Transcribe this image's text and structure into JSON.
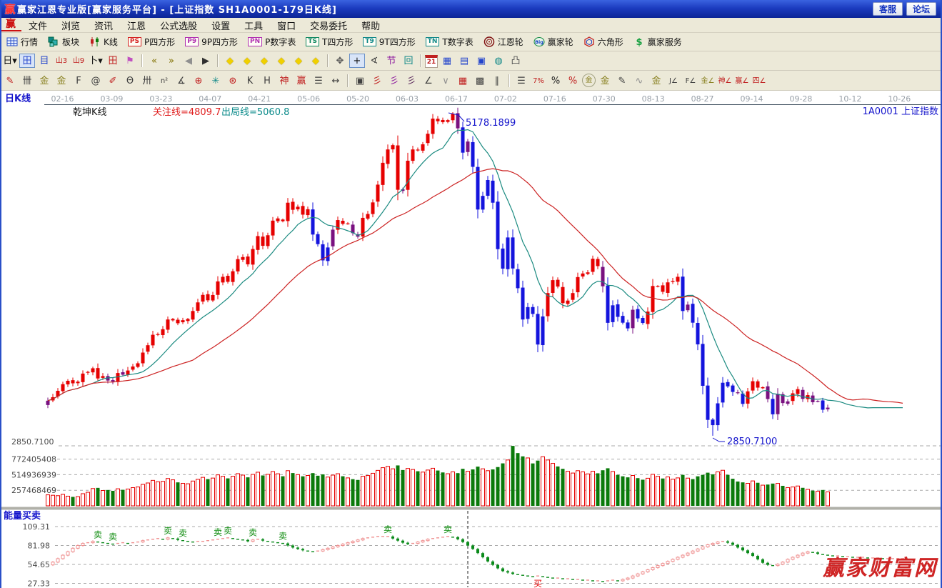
{
  "window": {
    "title": "赢家江恩专业版[赢家服务平台] - [上证指数  SH1A0001-179日K线]",
    "buttons": [
      "客服",
      "论坛"
    ]
  },
  "menu": {
    "items": [
      "文件",
      "浏览",
      "资讯",
      "江恩",
      "公式选股",
      "设置",
      "工具",
      "窗口",
      "交易委托",
      "帮助"
    ],
    "logo": "赢"
  },
  "toolbar1": [
    {
      "icon": "grid",
      "label": "行情",
      "name": "quotes"
    },
    {
      "icon": "blocks",
      "label": "板块",
      "name": "sectors"
    },
    {
      "icon": "kline",
      "label": "K线",
      "name": "kline"
    },
    {
      "icon": "badge",
      "badge": "PS",
      "color": "#d42020",
      "label": "P四方形",
      "name": "p-square"
    },
    {
      "icon": "badge",
      "badge": "P9",
      "color": "#b030b0",
      "label": "9P四方形",
      "name": "9p-square"
    },
    {
      "icon": "badge",
      "badge": "PN",
      "color": "#b030b0",
      "label": "P数字表",
      "name": "p-table"
    },
    {
      "icon": "badge",
      "badge": "TS",
      "color": "#108860",
      "label": "T四方形",
      "name": "t-square"
    },
    {
      "icon": "badge",
      "badge": "T9",
      "color": "#108888",
      "label": "9T四方形",
      "name": "9t-square"
    },
    {
      "icon": "badge",
      "badge": "TN",
      "color": "#108888",
      "label": "T数字表",
      "name": "t-table"
    },
    {
      "icon": "wheel",
      "label": "江恩轮",
      "name": "gann-wheel"
    },
    {
      "icon": "big",
      "label": "赢家轮",
      "name": "winner-wheel"
    },
    {
      "icon": "hex",
      "label": "六角形",
      "name": "hexagon"
    },
    {
      "icon": "dollar",
      "label": "赢家服务",
      "name": "winner-service"
    }
  ],
  "toolbar2": [
    {
      "g": "日▾",
      "c": "#101010",
      "n": "kline-style"
    },
    {
      "g": "田",
      "c": "#2244cc",
      "n": "window-grid",
      "a": true
    },
    {
      "g": "目",
      "c": "#2244cc",
      "n": "info-note"
    },
    {
      "g": "山3",
      "c": "#c02020",
      "n": "bars-3",
      "small": true
    },
    {
      "g": "山9",
      "c": "#c02020",
      "n": "bars-9",
      "small": true
    },
    {
      "g": "卜▾",
      "c": "#101010",
      "n": "candle-tool"
    },
    {
      "g": "田",
      "c": "#c02020",
      "n": "window-red"
    },
    {
      "g": "⚑",
      "c": "#c050c0",
      "n": "flag-chart"
    },
    {
      "sep": true
    },
    {
      "g": "«",
      "c": "#807000",
      "n": "first-page"
    },
    {
      "g": "»",
      "c": "#807000",
      "n": "last-page"
    },
    {
      "g": "◀",
      "c": "#909090",
      "n": "prev-bar"
    },
    {
      "g": "▶",
      "c": "#303030",
      "n": "next-bar"
    },
    {
      "sep": true
    },
    {
      "g": "◆",
      "n": "gann-nav-left",
      "diam": true
    },
    {
      "g": "◆",
      "n": "gann-nav-right",
      "diam": true
    },
    {
      "g": "◆",
      "n": "gann-nav-cross",
      "diam": true
    },
    {
      "g": "◆",
      "n": "gann-nav-plus",
      "diam": true
    },
    {
      "g": "◆",
      "n": "gann-nav-horizontal",
      "diam": true
    },
    {
      "g": "◆",
      "n": "gann-nav-vertical",
      "diam": true
    },
    {
      "sep": true
    },
    {
      "g": "✥",
      "c": "#555555",
      "n": "pan-hand"
    },
    {
      "g": "+",
      "c": "#101010",
      "n": "crosshair",
      "a": true
    },
    {
      "g": "∢",
      "c": "#444444",
      "n": "angle-measure"
    },
    {
      "g": "节",
      "c": "#9020a0",
      "n": "festival-tool"
    },
    {
      "g": "回",
      "c": "#108888",
      "n": "cycle-tool"
    },
    {
      "sep": true
    },
    {
      "g": "21",
      "c": "#c02020",
      "n": "calendar",
      "cal": true
    },
    {
      "g": "▦",
      "c": "#2244cc",
      "n": "calculator"
    },
    {
      "g": "▤",
      "c": "#2244cc",
      "n": "report"
    },
    {
      "g": "▣",
      "c": "#2244cc",
      "n": "save"
    },
    {
      "g": "◍",
      "c": "#108888",
      "n": "web-link"
    },
    {
      "g": "凸",
      "c": "#555555",
      "n": "print"
    }
  ],
  "toolbar3": [
    {
      "g": "✎",
      "c": "#c02020",
      "n": "draw-pen"
    },
    {
      "g": "卌",
      "c": "#404040",
      "n": "grid-divider"
    },
    {
      "g": "金",
      "c": "#888020",
      "n": "gold-divider-1"
    },
    {
      "g": "金",
      "c": "#888020",
      "n": "gold-divider-2"
    },
    {
      "g": "F",
      "c": "#404040",
      "n": "fib-divider"
    },
    {
      "g": "@",
      "c": "#404040",
      "n": "spiral"
    },
    {
      "g": "✐",
      "c": "#c02020",
      "n": "pen-2"
    },
    {
      "g": "Θ",
      "c": "#404040",
      "n": "time-spiral"
    },
    {
      "g": "卅",
      "c": "#404040",
      "n": "time-divider"
    },
    {
      "g": "n²",
      "c": "#404040",
      "n": "square-numbers",
      "small": true
    },
    {
      "g": "∡",
      "c": "#404040",
      "n": "angle-ruler"
    },
    {
      "g": "⊕",
      "c": "#c02020",
      "n": "target-circle"
    },
    {
      "g": "✳",
      "c": "#108888",
      "n": "star-web"
    },
    {
      "g": "⊛",
      "c": "#c02020",
      "n": "web-box"
    },
    {
      "g": "K",
      "c": "#404040",
      "n": "k-pattern"
    },
    {
      "g": "H",
      "c": "#404040",
      "n": "h-pattern"
    },
    {
      "g": "神",
      "c": "#c02020",
      "n": "shen-tool"
    },
    {
      "g": "赢",
      "c": "#c02020",
      "n": "ying-tool"
    },
    {
      "g": "☰",
      "c": "#404040",
      "n": "ruler-123"
    },
    {
      "g": "↔",
      "c": "#404040",
      "n": "measure-arrows"
    },
    {
      "sep": true
    },
    {
      "g": "▣",
      "c": "#404040",
      "n": "box-tool"
    },
    {
      "g": "彡",
      "c": "#c02020",
      "n": "fan-red"
    },
    {
      "g": "彡",
      "c": "#9020a0",
      "n": "fan-purple"
    },
    {
      "g": "彡",
      "c": "#603060",
      "n": "fan-dark"
    },
    {
      "g": "∠",
      "c": "#404040",
      "n": "angle-lines"
    },
    {
      "g": "∨",
      "c": "#909090",
      "n": "wave-v"
    },
    {
      "g": "▦",
      "c": "#c02020",
      "n": "grid-red"
    },
    {
      "g": "▩",
      "c": "#404040",
      "n": "grid-box"
    },
    {
      "g": "∥",
      "c": "#404040",
      "n": "parallel-lines"
    },
    {
      "sep": true
    },
    {
      "g": "☰",
      "c": "#404040",
      "n": "price-ruler"
    },
    {
      "g": "7%",
      "c": "#c02020",
      "n": "percent-7",
      "small": true
    },
    {
      "g": "%",
      "c": "#202020",
      "n": "percent"
    },
    {
      "g": "%",
      "c": "#c02020",
      "n": "percent-line"
    },
    {
      "g": "金",
      "c": "#888020",
      "n": "gold-circle",
      "circ": true
    },
    {
      "g": "金",
      "c": "#888020",
      "n": "gold-bars"
    },
    {
      "g": "✎",
      "c": "#404040",
      "n": "mark-pen"
    },
    {
      "g": "∿",
      "c": "#909090",
      "n": "wave-tool"
    },
    {
      "g": "金",
      "c": "#888020",
      "n": "gold-line"
    },
    {
      "g": "J∠",
      "c": "#404040",
      "n": "j-angle",
      "small": true
    },
    {
      "g": "F∠",
      "c": "#404040",
      "n": "f-angle",
      "small": true
    },
    {
      "g": "金∠",
      "c": "#888020",
      "n": "gold-angle",
      "small": true
    },
    {
      "g": "神∠",
      "c": "#c02020",
      "n": "shen-angle",
      "small": true
    },
    {
      "g": "赢∠",
      "c": "#c02020",
      "n": "ying-angle",
      "small": true
    },
    {
      "g": "四∠",
      "c": "#c02020",
      "n": "four-angle",
      "small": true
    }
  ],
  "chart": {
    "tab_label": "日K线",
    "overlay_name": "乾坤K线",
    "attention_line": "关注线=4809.7",
    "exit_line": "出局线=5060.8",
    "symbol_label": "1A0001  上证指数",
    "indicator_label": "能量买卖",
    "watermark": "赢家财富网",
    "price_label": "2850.7100",
    "peak_label": "5178.1899",
    "trough_label": "2850.7100",
    "volume_labels": [
      "772405408",
      "514936939",
      "257468469"
    ],
    "indicator_axis_labels": [
      "109.31",
      "81.98",
      "54.65",
      "27.33"
    ],
    "sell_label": "卖",
    "buy_label": "买"
  },
  "chart_data": {
    "type": "candlestick",
    "symbol": "SH1A0001 上证指数",
    "bars_label": "179日K线",
    "dates": [
      "02-16",
      "03-09",
      "03-23",
      "04-07",
      "04-21",
      "05-06",
      "05-20",
      "06-03",
      "06-17",
      "07-02",
      "07-16",
      "07-30",
      "08-13",
      "08-27",
      "09-14",
      "09-28",
      "10-12",
      "10-26"
    ],
    "price_range": [
      2850.71,
      5178.19
    ],
    "candles": [
      [
        3103,
        182
      ],
      [
        3128,
        175
      ],
      [
        3174,
        168
      ],
      [
        3222,
        190
      ],
      [
        3246,
        160
      ],
      [
        3228,
        148
      ],
      [
        3240,
        152
      ],
      [
        3298,
        201
      ],
      [
        3310,
        224
      ],
      [
        3336,
        286
      ],
      [
        3263,
        297
      ],
      [
        3280,
        254
      ],
      [
        3248,
        262
      ],
      [
        3241,
        248
      ],
      [
        3302,
        282
      ],
      [
        3290,
        265
      ],
      [
        3320,
        278
      ],
      [
        3349,
        301
      ],
      [
        3372,
        312
      ],
      [
        3449,
        355
      ],
      [
        3502,
        378
      ],
      [
        3577,
        421
      ],
      [
        3582,
        398
      ],
      [
        3617,
        405
      ],
      [
        3687,
        452
      ],
      [
        3691,
        430
      ],
      [
        3660,
        388
      ],
      [
        3682,
        372
      ],
      [
        3691,
        365
      ],
      [
        3748,
        410
      ],
      [
        3810,
        438
      ],
      [
        3864,
        471
      ],
      [
        3825,
        442
      ],
      [
        3863,
        459
      ],
      [
        3961,
        512
      ],
      [
        3994,
        488
      ],
      [
        3958,
        454
      ],
      [
        4034,
        489
      ],
      [
        4121,
        532
      ],
      [
        4136,
        508
      ],
      [
        4084,
        471
      ],
      [
        4194,
        520
      ],
      [
        4287,
        556
      ],
      [
        4217,
        502
      ],
      [
        4293,
        521
      ],
      [
        4398,
        567
      ],
      [
        4414,
        530
      ],
      [
        4394,
        489
      ],
      [
        4527,
        581
      ],
      [
        4476,
        542
      ],
      [
        4498,
        516
      ],
      [
        4441,
        488
      ],
      [
        4480,
        502
      ],
      [
        4298,
        541
      ],
      [
        4229,
        498
      ],
      [
        4112,
        520
      ],
      [
        4205,
        476
      ],
      [
        4333,
        508
      ],
      [
        4402,
        531
      ],
      [
        4375,
        489
      ],
      [
        4378,
        462
      ],
      [
        4308,
        441
      ],
      [
        4283,
        428
      ],
      [
        4418,
        489
      ],
      [
        4446,
        501
      ],
      [
        4529,
        538
      ],
      [
        4657,
        586
      ],
      [
        4814,
        631
      ],
      [
        4910,
        652
      ],
      [
        4941,
        612
      ],
      [
        4620,
        668
      ],
      [
        4612,
        592
      ],
      [
        4829,
        618
      ],
      [
        4910,
        601
      ],
      [
        4909,
        572
      ],
      [
        4947,
        558
      ],
      [
        5023,
        592
      ],
      [
        5132,
        621
      ],
      [
        5113,
        584
      ],
      [
        5106,
        552
      ],
      [
        5121,
        531
      ],
      [
        5166,
        562
      ],
      [
        5062,
        541
      ],
      [
        4887,
        612
      ],
      [
        4967,
        571
      ],
      [
        4785,
        602
      ],
      [
        4478,
        648
      ],
      [
        4576,
        612
      ],
      [
        4690,
        581
      ],
      [
        4527,
        602
      ],
      [
        4193,
        641
      ],
      [
        4053,
        702
      ],
      [
        4277,
        758
      ],
      [
        4054,
        991
      ],
      [
        3912,
        872
      ],
      [
        3687,
        818
      ],
      [
        3776,
        792
      ],
      [
        3727,
        701
      ],
      [
        3507,
        748
      ],
      [
        3709,
        812
      ],
      [
        3877,
        758
      ],
      [
        3970,
        702
      ],
      [
        3924,
        651
      ],
      [
        3805,
        612
      ],
      [
        3823,
        571
      ],
      [
        3877,
        542
      ],
      [
        3992,
        581
      ],
      [
        4018,
        562
      ],
      [
        4026,
        528
      ],
      [
        4124,
        572
      ],
      [
        4071,
        538
      ],
      [
        3926,
        588
      ],
      [
        3663,
        621
      ],
      [
        3789,
        568
      ],
      [
        3706,
        512
      ],
      [
        3664,
        488
      ],
      [
        3623,
        471
      ],
      [
        3757,
        502
      ],
      [
        3695,
        458
      ],
      [
        3662,
        432
      ],
      [
        3744,
        456
      ],
      [
        3928,
        521
      ],
      [
        3928,
        488
      ],
      [
        3886,
        452
      ],
      [
        3954,
        478
      ],
      [
        3965,
        441
      ],
      [
        3994,
        462
      ],
      [
        3748,
        512
      ],
      [
        3794,
        458
      ],
      [
        3664,
        442
      ],
      [
        3508,
        488
      ],
      [
        3210,
        512
      ],
      [
        2965,
        548
      ],
      [
        2927,
        521
      ],
      [
        3084,
        562
      ],
      [
        3232,
        588
      ],
      [
        3206,
        512
      ],
      [
        3166,
        448
      ],
      [
        3160,
        402
      ],
      [
        3080,
        388
      ],
      [
        3170,
        372
      ],
      [
        3243,
        412
      ],
      [
        3197,
        381
      ],
      [
        3200,
        342
      ],
      [
        3115,
        352
      ],
      [
        3005,
        368
      ],
      [
        3152,
        371
      ],
      [
        3086,
        331
      ],
      [
        3098,
        302
      ],
      [
        3156,
        312
      ],
      [
        3186,
        328
      ],
      [
        3116,
        298
      ],
      [
        3143,
        272
      ],
      [
        3092,
        252
      ],
      [
        3101,
        241
      ],
      [
        3038,
        262
      ],
      [
        3053,
        231
      ]
    ],
    "volume_unit": "millions",
    "volume_axis": [
      772405408,
      514936939,
      257468469
    ],
    "peak": {
      "index": 81,
      "high": 5178.19,
      "label": "5178.1899"
    },
    "trough": {
      "index": 133,
      "low": 2850.71,
      "label": "2850.7100"
    },
    "ma_periods": {
      "short": 10,
      "long": 30
    },
    "extension_days": 15,
    "indicator": {
      "name": "能量买卖",
      "axis": [
        109.31,
        81.98,
        54.65,
        27.33
      ],
      "values": [
        54,
        58,
        63,
        68,
        73,
        78,
        82,
        85,
        86,
        88,
        87,
        86,
        85,
        84,
        85,
        86,
        85,
        86,
        87,
        89,
        90,
        91,
        92,
        91,
        93,
        92,
        90,
        89,
        88,
        87,
        88,
        88,
        89,
        90,
        91,
        92,
        93,
        92,
        91,
        90,
        88,
        90,
        91,
        89,
        88,
        87,
        86,
        85,
        82,
        79,
        77,
        75,
        74,
        73,
        74,
        76,
        78,
        80,
        82,
        84,
        86,
        88,
        90,
        92,
        93,
        94,
        95,
        95,
        95,
        92,
        89,
        86,
        84,
        85,
        87,
        89,
        91,
        92,
        93,
        94,
        95,
        94,
        91,
        87,
        82,
        77,
        71,
        65,
        59,
        54,
        49,
        45,
        43,
        41,
        40,
        39,
        38,
        37,
        38,
        37,
        36,
        35,
        35,
        34,
        34,
        33,
        33,
        32,
        32,
        31,
        31,
        30,
        31,
        32,
        31,
        33,
        35,
        38,
        41,
        44,
        47,
        50,
        53,
        56,
        59,
        62,
        65,
        68,
        71,
        74,
        77,
        80,
        83,
        85,
        87,
        88,
        86,
        83,
        79,
        75,
        71,
        67,
        62,
        57,
        54,
        53,
        55,
        58,
        62,
        65,
        68,
        71,
        73,
        72,
        70,
        69,
        68,
        67,
        67,
        66,
        66,
        65,
        65,
        65,
        64,
        64,
        64,
        63,
        63,
        63,
        63,
        63
      ],
      "sell_days": [
        10,
        13,
        24,
        27,
        34,
        36,
        41,
        47,
        68,
        80
      ],
      "buy_days": [
        98
      ],
      "divider_day": 84
    },
    "colors": {
      "up": "#e60000",
      "down": "#1414dd",
      "neutral": "#7a1080",
      "ma_short": "#1a8a80",
      "ma_long": "#cc2222",
      "vol_up": "#e60000",
      "vol_down": "#0a7a0a",
      "ind_up": "#ef9090",
      "ind_down": "#0a8a1a",
      "sell": "#0a8a0a",
      "buy": "#e60000",
      "annotation": "#1515cc",
      "watermark": "#cf2525"
    }
  }
}
